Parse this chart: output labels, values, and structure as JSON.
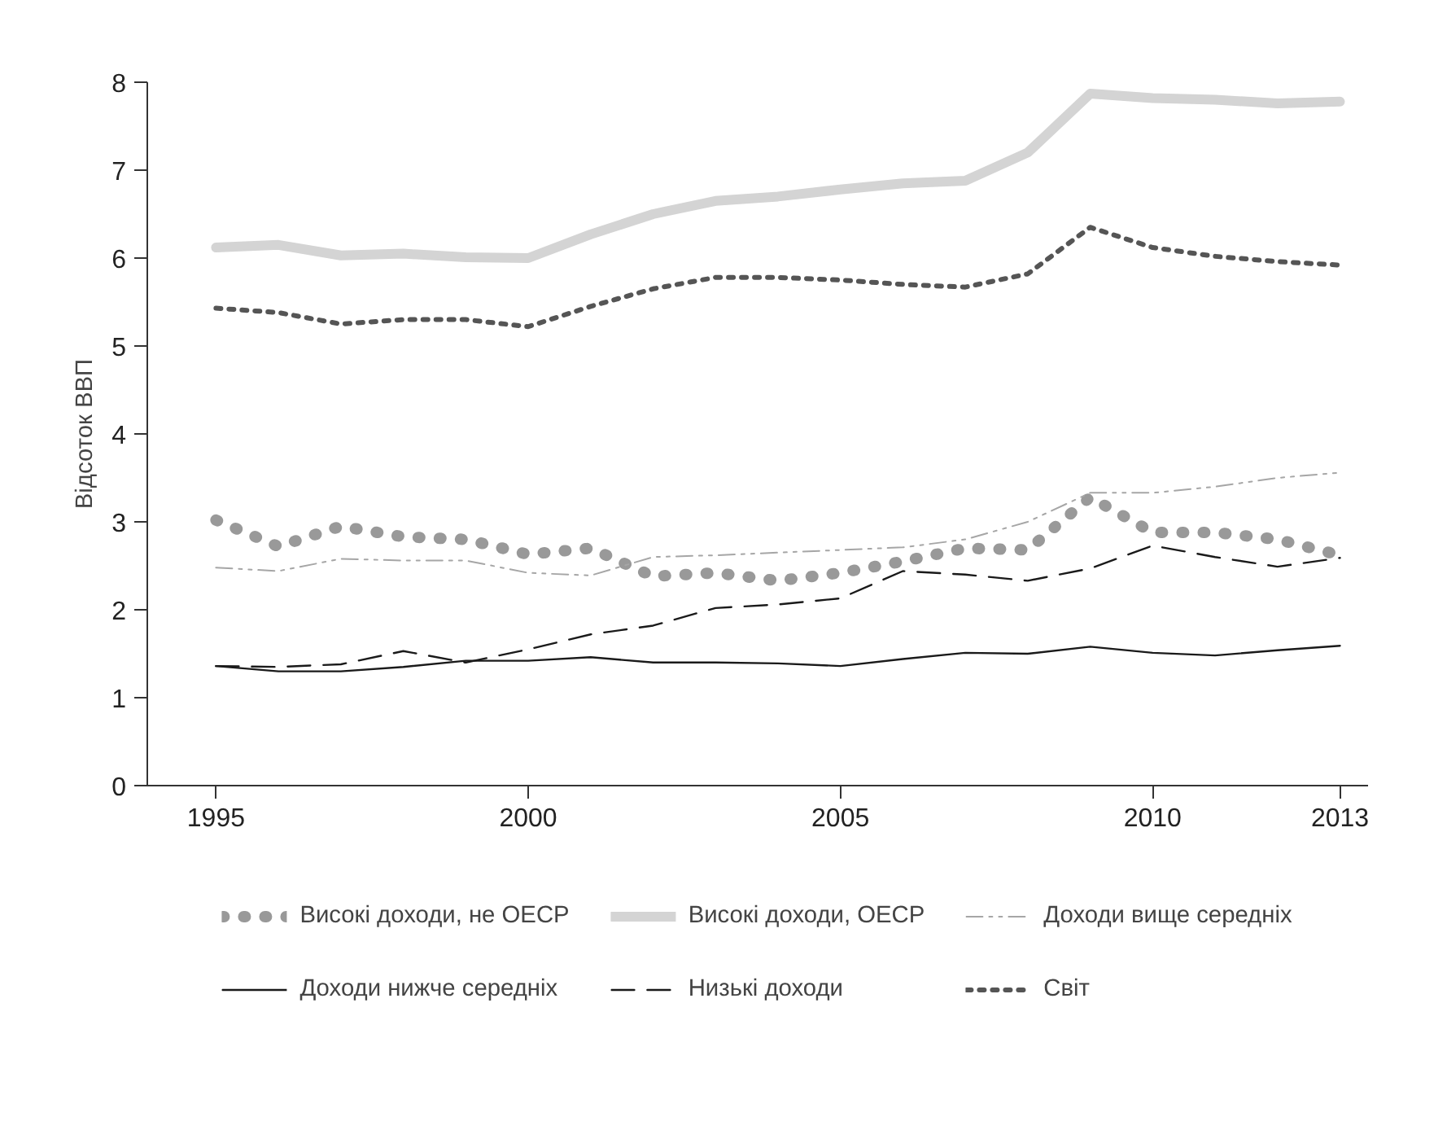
{
  "chart_data": {
    "type": "line",
    "ylabel": "Відсоток ВВП",
    "x": [
      1995,
      1996,
      1997,
      1998,
      1999,
      2000,
      2001,
      2002,
      2003,
      2004,
      2005,
      2006,
      2007,
      2008,
      2009,
      2010,
      2011,
      2012,
      2013
    ],
    "series": [
      {
        "name": "Високі доходи, не ОЕСР",
        "color": "#999999",
        "line_style": "dotted",
        "values": [
          3.02,
          2.72,
          2.95,
          2.83,
          2.8,
          2.63,
          2.7,
          2.38,
          2.42,
          2.33,
          2.42,
          2.55,
          2.7,
          2.68,
          3.28,
          2.88,
          2.88,
          2.8,
          2.62
        ]
      },
      {
        "name": "Високі доходи, ОЕСР",
        "color": "#d4d4d4",
        "line_style": "solid",
        "values": [
          6.12,
          6.15,
          6.03,
          6.05,
          6.01,
          6.0,
          6.27,
          6.5,
          6.65,
          6.7,
          6.78,
          6.85,
          6.88,
          7.2,
          7.87,
          7.82,
          7.8,
          7.76,
          7.78
        ]
      },
      {
        "name": "Доходи вище середніх",
        "color": "#a6a6a6",
        "line_style": "dashdot",
        "values": [
          2.48,
          2.44,
          2.58,
          2.56,
          2.56,
          2.42,
          2.39,
          2.6,
          2.62,
          2.65,
          2.68,
          2.71,
          2.8,
          3.0,
          3.33,
          3.33,
          3.4,
          3.5,
          3.56
        ]
      },
      {
        "name": "Доходи нижче середніх",
        "color": "#1a1a1a",
        "line_style": "solid",
        "values": [
          1.36,
          1.3,
          1.3,
          1.35,
          1.42,
          1.42,
          1.46,
          1.4,
          1.4,
          1.39,
          1.36,
          1.44,
          1.51,
          1.5,
          1.58,
          1.51,
          1.48,
          1.54,
          1.59
        ]
      },
      {
        "name": "Низькі доходи",
        "color": "#1a1a1a",
        "line_style": "dashed",
        "values": [
          1.36,
          1.35,
          1.38,
          1.53,
          1.4,
          1.55,
          1.72,
          1.82,
          2.02,
          2.06,
          2.13,
          2.44,
          2.4,
          2.33,
          2.47,
          2.73,
          2.6,
          2.49,
          2.59
        ]
      },
      {
        "name": "Світ",
        "color": "#555555",
        "line_style": "dotted",
        "values": [
          5.43,
          5.38,
          5.25,
          5.3,
          5.3,
          5.22,
          5.45,
          5.65,
          5.78,
          5.78,
          5.75,
          5.7,
          5.67,
          5.82,
          6.35,
          6.12,
          6.02,
          5.96,
          5.92
        ]
      }
    ],
    "xlim": [
      1993.9,
      2013.45
    ],
    "ylim": [
      0,
      8
    ],
    "xticks": [
      1995,
      2000,
      2005,
      2010,
      2013
    ],
    "yticks": [
      0,
      1,
      2,
      3,
      4,
      5,
      6,
      7,
      8
    ],
    "grid": false,
    "legend": "bottom"
  }
}
